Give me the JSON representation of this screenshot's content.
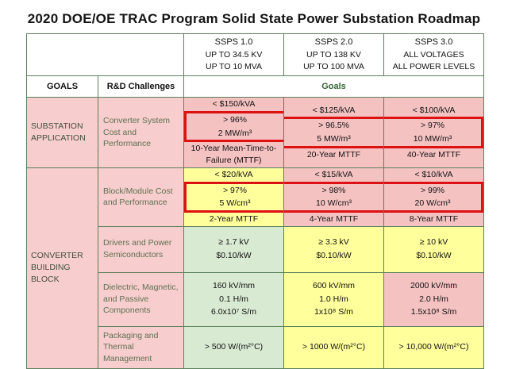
{
  "title": "2020 DOE/OE TRAC Program Solid State Power Substation Roadmap",
  "columns": [
    {
      "name": "SSPS 1.0",
      "voltage": "UP TO 34.5 KV",
      "power": "UP TO 10 MVA"
    },
    {
      "name": "SSPS 2.0",
      "voltage": "UP TO 138 KV",
      "power": "UP TO 100 MVA"
    },
    {
      "name": "SSPS 3.0",
      "voltage": "ALL VOLTAGES",
      "power": "ALL POWER LEVELS"
    }
  ],
  "headers": {
    "goals": "GOALS",
    "rd_challenges": "R&D Challenges",
    "goals_span": "Goals"
  },
  "groups": [
    {
      "label": "SUBSTATION APPLICATION"
    },
    {
      "label": "CONVERTER BUILDING BLOCK"
    }
  ],
  "rows": [
    {
      "challenge": "Converter System Cost and Performance",
      "cells": [
        {
          "lines": [
            "< $150/kVA",
            "> 96%",
            "2 MW/m³",
            "10-Year Mean-Time-to-Failure (MTTF)"
          ]
        },
        {
          "lines": [
            "< $125/kVA",
            "> 96.5%",
            "5 MW/m³",
            "20-Year MTTF"
          ]
        },
        {
          "lines": [
            "< $100/kVA",
            "> 97%",
            "10 MW/m³",
            "40-Year MTTF"
          ]
        }
      ]
    },
    {
      "challenge": "Block/Module Cost and Performance",
      "cells": [
        {
          "lines": [
            "< $20/kVA",
            "> 97%",
            "5 W/cm³",
            "2-Year MTTF"
          ]
        },
        {
          "lines": [
            "< $15/kVA",
            "> 98%",
            "10 W/cm³",
            "4-Year MTTF"
          ]
        },
        {
          "lines": [
            "< $10/kVA",
            "> 99%",
            "20 W/cm³",
            "8-Year MTTF"
          ]
        }
      ]
    },
    {
      "challenge": "Drivers and Power Semiconductors",
      "cells": [
        {
          "lines": [
            "≥ 1.7 kV",
            "$0.10/kW"
          ]
        },
        {
          "lines": [
            "≥ 3.3 kV",
            "$0.10/kW"
          ]
        },
        {
          "lines": [
            "≥ 10 kV",
            "$0.10/kW"
          ]
        }
      ]
    },
    {
      "challenge": "Dielectric, Magnetic, and Passive Components",
      "cells": [
        {
          "lines": [
            "160 kV/mm",
            "0.1 H/m",
            "6.0x10⁷ S/m"
          ]
        },
        {
          "lines": [
            "600 kV/mm",
            "1.0 H/m",
            "1x10⁸ S/m"
          ]
        },
        {
          "lines": [
            "2000 kV/mm",
            "2.0 H/m",
            "1.5x10⁸ S/m"
          ]
        }
      ]
    },
    {
      "challenge": "Packaging and Thermal Management",
      "cells": [
        {
          "lines": [
            "> 500 W/(m²°C)"
          ]
        },
        {
          "lines": [
            "> 1000 W/(m²°C)"
          ]
        },
        {
          "lines": [
            "> 10,000 W/(m²°C)"
          ]
        }
      ]
    }
  ],
  "colors": {
    "cell_pink": "#f5c2c2",
    "cell_yellow": "#ffff9c",
    "cell_green": "#d9ead3",
    "label_pink": "#f7cdcd",
    "grid_border_green": "#5c805c",
    "highlight_red": "#dd1111",
    "challenge_text_green": "#5e7153",
    "goals_span_green": "#356635"
  }
}
